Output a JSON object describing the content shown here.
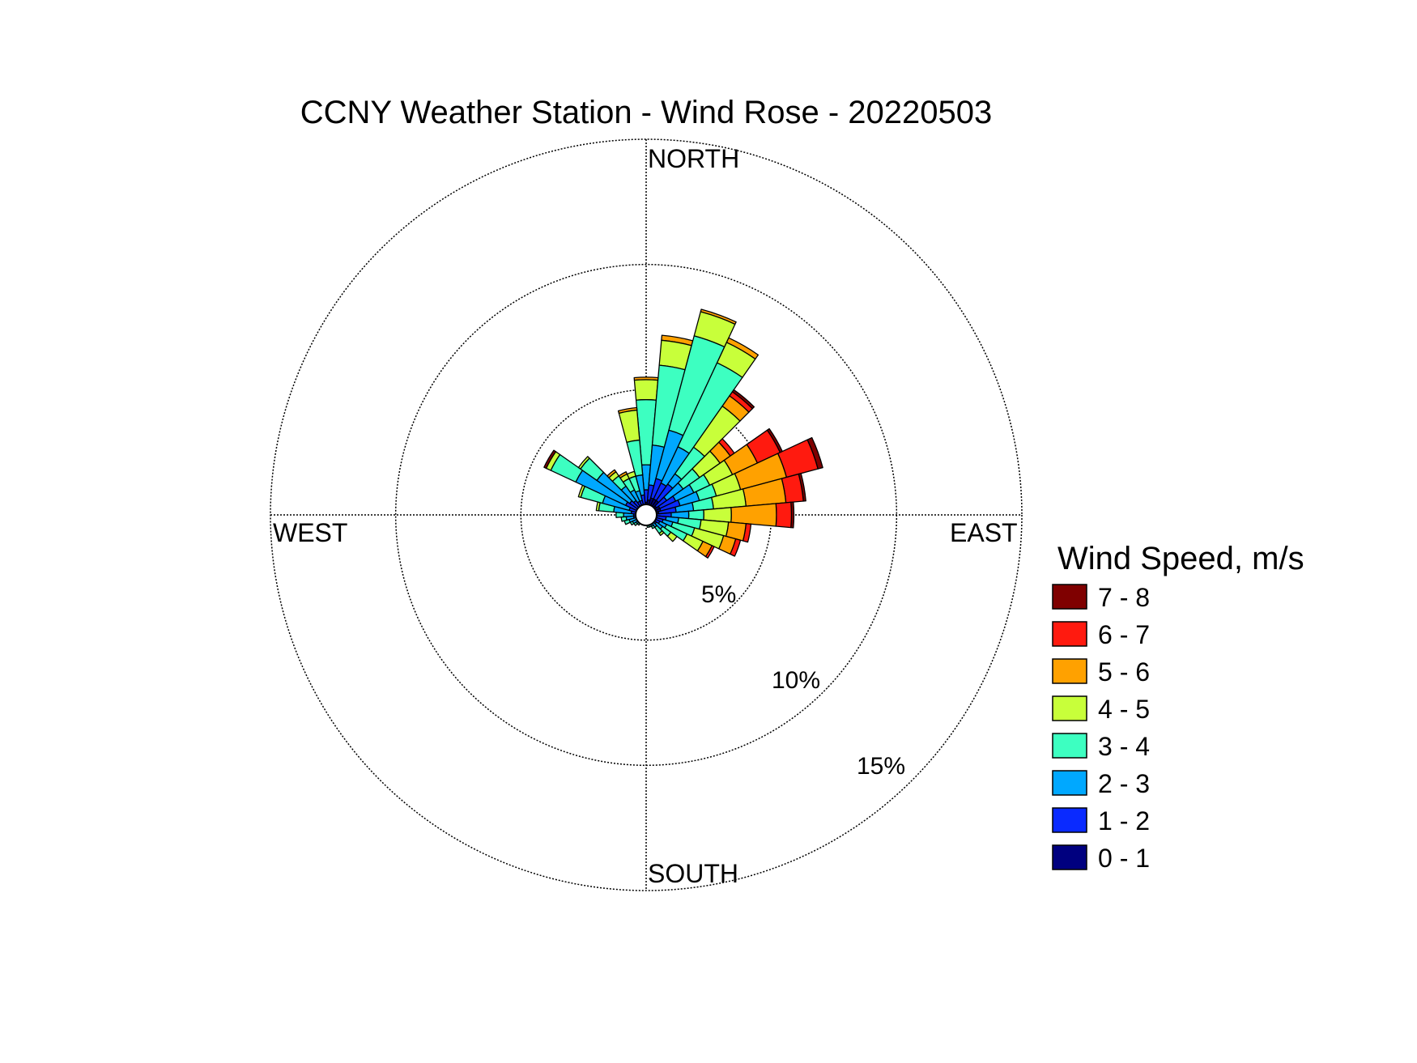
{
  "chart_data": {
    "type": "wind-rose",
    "title": "CCNY Weather Station - Wind Rose - 20220503",
    "directions": {
      "north": "NORTH",
      "east": "EAST",
      "south": "SOUTH",
      "west": "WEST"
    },
    "ring_labels": [
      "5%",
      "10%",
      "15%"
    ],
    "ring_values": [
      5,
      10,
      15
    ],
    "rmax": 15,
    "grid": true,
    "legend": {
      "title": "Wind Speed, m/s",
      "placement": "right",
      "entries": [
        {
          "label": "7 - 8",
          "color": "#7f0000"
        },
        {
          "label": "6 - 7",
          "color": "#ff1a0f"
        },
        {
          "label": "5 - 6",
          "color": "#ffa100"
        },
        {
          "label": "4 - 5",
          "color": "#c8ff3a"
        },
        {
          "label": "3 - 4",
          "color": "#3dffc1"
        },
        {
          "label": "2 - 3",
          "color": "#00a8ff"
        },
        {
          "label": "1 - 2",
          "color": "#0a2aff"
        },
        {
          "label": "0 - 1",
          "color": "#00007f"
        }
      ]
    },
    "speed_bins": [
      "0 - 1",
      "1 - 2",
      "2 - 3",
      "3 - 4",
      "4 - 5",
      "5 - 6",
      "6 - 7",
      "7 - 8"
    ],
    "bin_colors": [
      "#00007f",
      "#0a2aff",
      "#00a8ff",
      "#3dffc1",
      "#c8ff3a",
      "#ffa100",
      "#ff1a0f",
      "#7f0000"
    ],
    "sector_width_deg": 10,
    "sectors": [
      {
        "dir": 0,
        "cum": [
          0.5,
          1.0,
          2.0,
          4.6,
          5.4,
          5.5,
          5.5,
          5.5
        ]
      },
      {
        "dir": 10,
        "cum": [
          0.6,
          1.2,
          2.8,
          6.0,
          7.0,
          7.2,
          7.2,
          7.2
        ]
      },
      {
        "dir": 20,
        "cum": [
          0.7,
          1.5,
          3.5,
          7.4,
          8.4,
          8.5,
          8.5,
          8.5
        ]
      },
      {
        "dir": 30,
        "cum": [
          0.7,
          1.4,
          3.0,
          6.7,
          7.6,
          7.8,
          7.8,
          7.8
        ]
      },
      {
        "dir": 40,
        "cum": [
          0.7,
          1.5,
          2.0,
          3.3,
          5.3,
          5.8,
          6.0,
          6.1
        ]
      },
      {
        "dir": 50,
        "cum": [
          0.5,
          1.0,
          1.8,
          2.6,
          3.6,
          4.1,
          4.3,
          4.3
        ]
      },
      {
        "dir": 60,
        "cum": [
          0.6,
          1.3,
          2.1,
          2.8,
          3.8,
          4.9,
          5.9,
          6.0
        ]
      },
      {
        "dir": 70,
        "cum": [
          0.6,
          1.4,
          2.2,
          2.9,
          3.9,
          5.8,
          7.1,
          7.3
        ]
      },
      {
        "dir": 80,
        "cum": [
          0.5,
          1.2,
          1.9,
          2.7,
          4.0,
          5.6,
          6.3,
          6.4
        ]
      },
      {
        "dir": 90,
        "cum": [
          0.4,
          1.0,
          1.7,
          2.3,
          3.4,
          5.2,
          5.8,
          5.9
        ]
      },
      {
        "dir": 100,
        "cum": [
          0.4,
          0.8,
          1.3,
          2.2,
          3.3,
          4.0,
          4.2,
          4.2
        ]
      },
      {
        "dir": 110,
        "cum": [
          0.3,
          0.7,
          1.1,
          2.0,
          3.2,
          3.7,
          3.9,
          3.9
        ]
      },
      {
        "dir": 120,
        "cum": [
          0.3,
          0.6,
          0.9,
          1.8,
          2.5,
          2.9,
          3.0,
          3.0
        ]
      },
      {
        "dir": 130,
        "cum": [
          0.2,
          0.5,
          0.8,
          1.2,
          1.5,
          1.5,
          1.5,
          1.5
        ]
      },
      {
        "dir": 140,
        "cum": [
          0.2,
          0.4,
          0.6,
          0.9,
          1.0,
          1.0,
          1.0,
          1.0
        ]
      },
      {
        "dir": 150,
        "cum": [
          0.2,
          0.3,
          0.5,
          0.6,
          0.6,
          0.6,
          0.6,
          0.6
        ]
      },
      {
        "dir": 160,
        "cum": [
          0.2,
          0.3,
          0.4,
          0.5,
          0.5,
          0.5,
          0.5,
          0.5
        ]
      },
      {
        "dir": 170,
        "cum": [
          0.1,
          0.3,
          0.4,
          0.5,
          0.5,
          0.5,
          0.5,
          0.5
        ]
      },
      {
        "dir": 180,
        "cum": [
          0.1,
          0.2,
          0.3,
          0.3,
          0.3,
          0.3,
          0.3,
          0.3
        ]
      },
      {
        "dir": 190,
        "cum": [
          0.1,
          0.2,
          0.3,
          0.4,
          0.4,
          0.4,
          0.4,
          0.4
        ]
      },
      {
        "dir": 200,
        "cum": [
          0.1,
          0.2,
          0.3,
          0.4,
          0.4,
          0.4,
          0.4,
          0.4
        ]
      },
      {
        "dir": 210,
        "cum": [
          0.2,
          0.3,
          0.4,
          0.4,
          0.4,
          0.4,
          0.4,
          0.4
        ]
      },
      {
        "dir": 220,
        "cum": [
          0.2,
          0.3,
          0.4,
          0.5,
          0.5,
          0.5,
          0.5,
          0.5
        ]
      },
      {
        "dir": 230,
        "cum": [
          0.2,
          0.4,
          0.5,
          0.6,
          0.6,
          0.6,
          0.6,
          0.6
        ]
      },
      {
        "dir": 240,
        "cum": [
          0.2,
          0.4,
          0.6,
          0.7,
          0.7,
          0.7,
          0.7,
          0.7
        ]
      },
      {
        "dir": 250,
        "cum": [
          0.2,
          0.4,
          0.7,
          0.9,
          0.9,
          0.9,
          0.9,
          0.9
        ]
      },
      {
        "dir": 260,
        "cum": [
          0.2,
          0.5,
          0.8,
          1.0,
          1.0,
          1.0,
          1.0,
          1.0
        ]
      },
      {
        "dir": 270,
        "cum": [
          0.2,
          0.5,
          0.9,
          1.2,
          1.2,
          1.2,
          1.2,
          1.2
        ]
      },
      {
        "dir": 280,
        "cum": [
          0.3,
          0.6,
          1.3,
          1.9,
          2.0,
          2.0,
          2.0,
          2.0
        ]
      },
      {
        "dir": 290,
        "cum": [
          0.3,
          0.7,
          1.8,
          2.7,
          2.8,
          2.8,
          2.8,
          2.8
        ]
      },
      {
        "dir": 300,
        "cum": [
          0.4,
          0.9,
          3.1,
          4.2,
          4.4,
          4.4,
          4.4,
          4.5
        ]
      },
      {
        "dir": 310,
        "cum": [
          0.4,
          0.8,
          2.4,
          3.2,
          3.3,
          3.3,
          3.3,
          3.3
        ]
      },
      {
        "dir": 320,
        "cum": [
          0.4,
          0.7,
          1.4,
          1.9,
          2.1,
          2.2,
          2.2,
          2.2
        ]
      },
      {
        "dir": 330,
        "cum": [
          0.3,
          0.6,
          1.1,
          1.6,
          1.8,
          1.9,
          1.9,
          1.9
        ]
      },
      {
        "dir": 340,
        "cum": [
          0.3,
          0.6,
          1.0,
          1.6,
          1.8,
          1.8,
          1.8,
          1.8
        ]
      },
      {
        "dir": 350,
        "cum": [
          0.4,
          0.8,
          1.6,
          3.0,
          4.2,
          4.3,
          4.3,
          4.3
        ]
      }
    ]
  }
}
